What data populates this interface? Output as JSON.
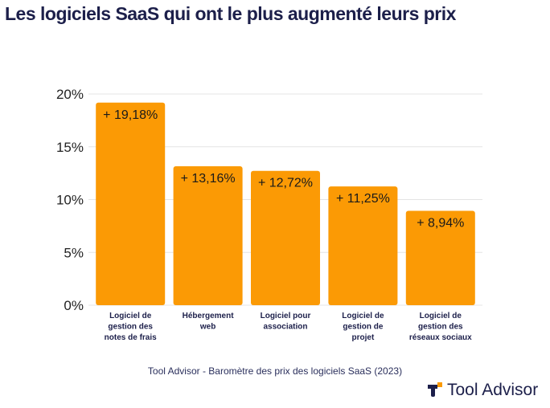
{
  "title": "Les logiciels SaaS qui ont le plus augmenté leurs prix",
  "source": "Tool Advisor - Baromètre des prix des logiciels SaaS (2023)",
  "brand": "Tool Advisor",
  "colors": {
    "bar": "#fb9a05",
    "text": "#1c1f4a",
    "brand_accent": "#fb9a05"
  },
  "chart_data": {
    "type": "bar",
    "categories": [
      [
        "Logiciel de",
        "gestion des",
        "notes de frais"
      ],
      [
        "Hébergement",
        "web"
      ],
      [
        "Logiciel pour",
        "association"
      ],
      [
        "Logiciel de",
        "gestion de",
        "projet"
      ],
      [
        "Logiciel de",
        "gestion des",
        "réseaux sociaux"
      ]
    ],
    "values": [
      19.18,
      13.16,
      12.72,
      11.25,
      8.94
    ],
    "data_labels": [
      "+ 19,18%",
      "+ 13,16%",
      "+ 12,72%",
      "+ 11,25%",
      "+ 8,94%"
    ],
    "yticks": [
      "0%",
      "5%",
      "10%",
      "15%",
      "20%"
    ],
    "ylim": [
      0,
      20
    ],
    "grid": true
  }
}
